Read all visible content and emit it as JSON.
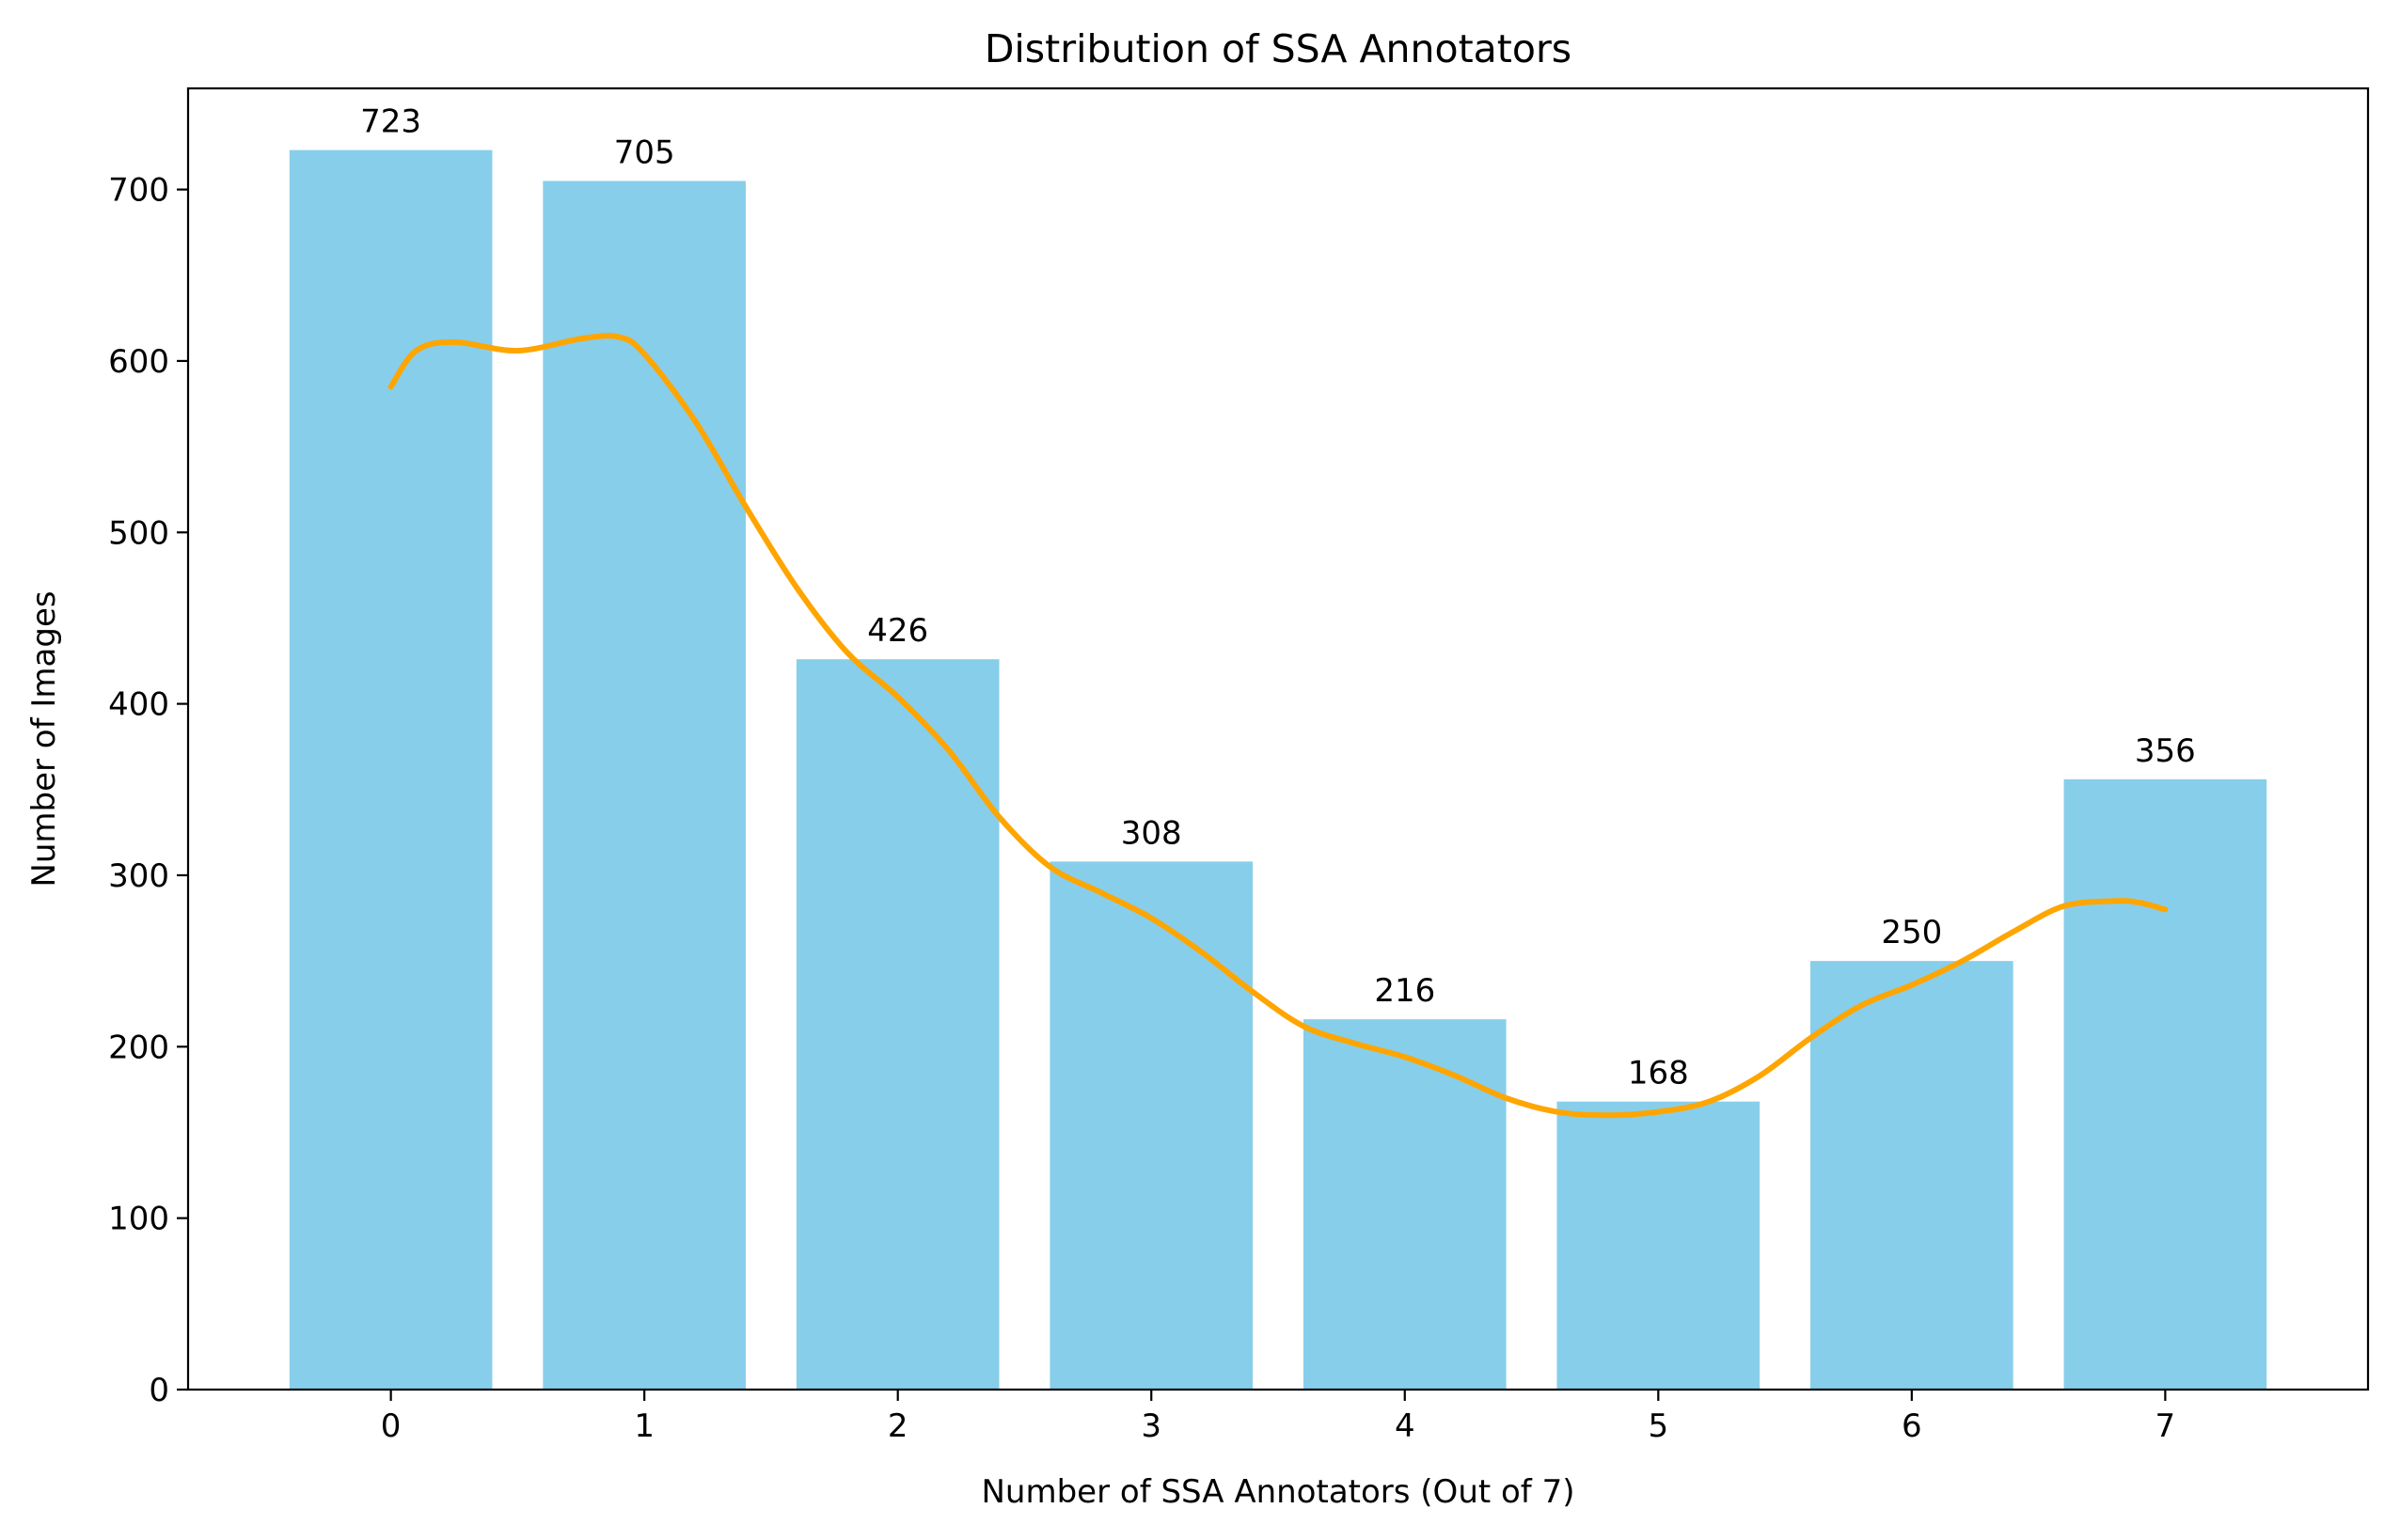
{
  "chart_data": {
    "type": "bar",
    "title": "Distribution of SSA Annotators",
    "xlabel": "Number of SSA Annotators (Out of 7)",
    "ylabel": "Number of Images",
    "categories": [
      "0",
      "1",
      "2",
      "3",
      "4",
      "5",
      "6",
      "7"
    ],
    "x": [
      0,
      1,
      2,
      3,
      4,
      5,
      6,
      7
    ],
    "values": [
      723,
      705,
      426,
      308,
      216,
      168,
      250,
      356
    ],
    "data_labels": [
      "723",
      "705",
      "426",
      "308",
      "216",
      "168",
      "250",
      "356"
    ],
    "xlim": [
      -0.8,
      7.8
    ],
    "ylim": [
      0,
      759
    ],
    "yticks": [
      0,
      100,
      200,
      300,
      400,
      500,
      600,
      700
    ],
    "ytick_labels": [
      "0",
      "100",
      "200",
      "300",
      "400",
      "500",
      "600",
      "700"
    ],
    "bar_color": "#87CEEB",
    "curve": {
      "type": "line",
      "color": "#FFA500",
      "x": [
        0,
        0.1,
        0.25,
        0.5,
        0.75,
        0.9,
        1.0,
        1.2,
        1.4,
        1.6,
        1.8,
        2.0,
        2.2,
        2.4,
        2.6,
        2.8,
        3.0,
        3.2,
        3.4,
        3.6,
        3.8,
        4.0,
        4.2,
        4.4,
        4.6,
        4.8,
        5.0,
        5.2,
        5.4,
        5.6,
        5.8,
        6.0,
        6.2,
        6.4,
        6.6,
        6.8,
        6.9,
        7.0
      ],
      "y": [
        585,
        606,
        611,
        606,
        613,
        614,
        604,
        565,
        515,
        468,
        430,
        404,
        373,
        334,
        305,
        290,
        275,
        255,
        232,
        212,
        202,
        194,
        183,
        170,
        162,
        160,
        162,
        168,
        183,
        205,
        224,
        236,
        250,
        267,
        282,
        285,
        284,
        280
      ]
    }
  }
}
